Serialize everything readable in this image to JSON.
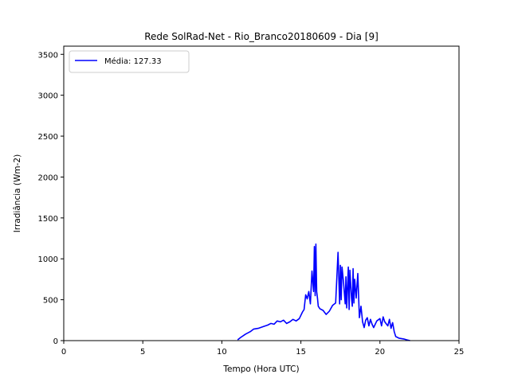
{
  "chart_data": {
    "type": "line",
    "title": "Rede SolRad-Net - Rio_Branco20180609 - Dia [9]",
    "xlabel": "Tempo (Hora UTC)",
    "ylabel": "Irradiância (Wm-2)",
    "xlim": [
      0,
      25
    ],
    "ylim": [
      0,
      3600
    ],
    "xticks": [
      0,
      5,
      10,
      15,
      20,
      25
    ],
    "yticks": [
      0,
      500,
      1000,
      1500,
      2000,
      2500,
      3000,
      3500
    ],
    "grid": false,
    "legend_position": "top-left",
    "series": [
      {
        "name": "Média: 127.33",
        "color": "#0000ff",
        "x": [
          11.0,
          11.2,
          11.5,
          11.8,
          12.0,
          12.3,
          12.6,
          12.9,
          13.1,
          13.3,
          13.5,
          13.7,
          13.9,
          14.1,
          14.3,
          14.5,
          14.7,
          14.9,
          15.1,
          15.2,
          15.3,
          15.4,
          15.5,
          15.6,
          15.7,
          15.8,
          15.85,
          15.9,
          15.95,
          16.0,
          16.05,
          16.1,
          16.2,
          16.4,
          16.6,
          16.8,
          17.0,
          17.2,
          17.35,
          17.45,
          17.5,
          17.55,
          17.6,
          17.7,
          17.8,
          17.85,
          17.9,
          18.0,
          18.05,
          18.1,
          18.2,
          18.25,
          18.3,
          18.35,
          18.4,
          18.5,
          18.6,
          18.7,
          18.8,
          18.9,
          19.0,
          19.1,
          19.2,
          19.3,
          19.4,
          19.5,
          19.6,
          19.8,
          20.0,
          20.1,
          20.2,
          20.3,
          20.5,
          20.6,
          20.7,
          20.8,
          20.9,
          21.0,
          21.2,
          21.5,
          21.7,
          21.9
        ],
        "y": [
          10,
          40,
          80,
          110,
          140,
          150,
          170,
          190,
          210,
          200,
          240,
          230,
          250,
          210,
          230,
          260,
          240,
          270,
          350,
          380,
          560,
          510,
          600,
          450,
          850,
          600,
          1150,
          550,
          1180,
          600,
          520,
          420,
          390,
          370,
          320,
          360,
          430,
          460,
          1080,
          450,
          920,
          500,
          900,
          700,
          450,
          780,
          400,
          900,
          380,
          860,
          520,
          420,
          880,
          460,
          750,
          520,
          820,
          280,
          420,
          230,
          160,
          250,
          280,
          180,
          260,
          200,
          160,
          240,
          270,
          180,
          290,
          230,
          180,
          260,
          150,
          220,
          110,
          50,
          30,
          20,
          10,
          0
        ]
      }
    ]
  }
}
